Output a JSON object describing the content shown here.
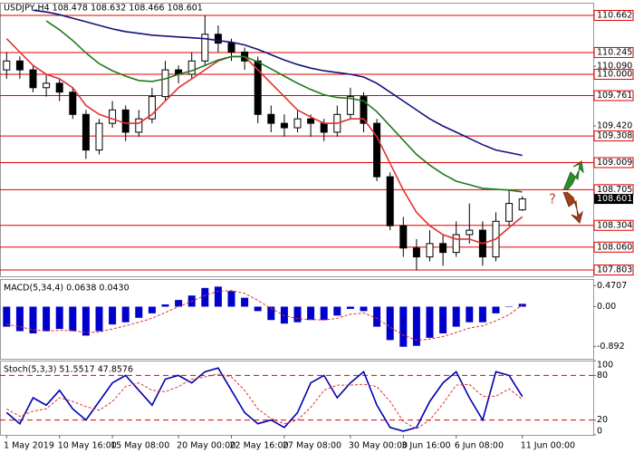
{
  "chart_data": [
    {
      "type": "candlestick",
      "title": "USDJPY,H4  108.478 108.632 108.466 108.601",
      "categories": [
        "1 May 2019",
        null,
        null,
        null,
        "10 May 16:00",
        null,
        null,
        null,
        "15 May 08:00",
        null,
        null,
        null,
        null,
        "20 May 00:00",
        null,
        null,
        null,
        "22 May 16:00",
        null,
        null,
        null,
        "27 May 08:00",
        null,
        null,
        null,
        null,
        "30 May 00:00",
        null,
        null,
        null,
        "3 Jun 16:00",
        null,
        null,
        null,
        "6 Jun 08:00",
        null,
        null,
        null,
        null,
        "11 Jun 00:00"
      ],
      "open": [
        110.05,
        110.15,
        110.05,
        109.85,
        109.9,
        109.8,
        109.55,
        109.15,
        109.45,
        109.6,
        109.35,
        109.5,
        109.75,
        110.05,
        110.0,
        110.15,
        110.45,
        110.35,
        110.25,
        110.15,
        109.55,
        109.45,
        109.4,
        109.5,
        109.45,
        109.35,
        109.55,
        109.75,
        109.45,
        108.85,
        108.3,
        108.05,
        107.95,
        108.1,
        108.0,
        108.2,
        108.25,
        107.95,
        108.35,
        108.478
      ],
      "high": [
        110.25,
        110.2,
        110.1,
        110.0,
        109.95,
        109.85,
        109.6,
        109.5,
        109.7,
        109.65,
        109.6,
        109.85,
        110.15,
        110.1,
        110.25,
        110.66,
        110.55,
        110.4,
        110.3,
        110.2,
        109.65,
        109.55,
        109.6,
        109.55,
        109.5,
        109.65,
        109.85,
        109.8,
        109.5,
        108.9,
        108.4,
        108.15,
        108.25,
        108.2,
        108.35,
        108.55,
        108.35,
        108.45,
        108.7,
        108.632
      ],
      "low": [
        109.95,
        109.95,
        109.8,
        109.75,
        109.7,
        109.5,
        109.05,
        109.1,
        109.4,
        109.25,
        109.3,
        109.45,
        109.7,
        109.9,
        109.95,
        110.1,
        110.25,
        110.15,
        110.05,
        109.45,
        109.35,
        109.3,
        109.35,
        109.3,
        109.25,
        109.3,
        109.5,
        109.35,
        108.8,
        108.25,
        107.95,
        107.8,
        107.9,
        107.85,
        107.95,
        108.1,
        107.85,
        107.9,
        108.3,
        108.466
      ],
      "close": [
        110.15,
        110.05,
        109.85,
        109.9,
        109.8,
        109.55,
        109.15,
        109.45,
        109.6,
        109.35,
        109.5,
        109.75,
        110.05,
        110.0,
        110.15,
        110.45,
        110.35,
        110.25,
        110.15,
        109.55,
        109.45,
        109.4,
        109.5,
        109.45,
        109.35,
        109.55,
        109.75,
        109.45,
        108.85,
        108.3,
        108.05,
        107.95,
        108.1,
        108.0,
        108.2,
        108.25,
        107.95,
        108.35,
        108.55,
        108.601
      ],
      "up_color": "#ffffff",
      "down_color": "#000000",
      "series": [
        {
          "color": "#e03030",
          "values": [
            110.4,
            110.25,
            110.1,
            110.0,
            109.95,
            109.85,
            109.65,
            109.55,
            109.5,
            109.45,
            109.45,
            109.55,
            109.7,
            109.85,
            109.95,
            110.05,
            110.15,
            110.2,
            110.2,
            110.05,
            109.9,
            109.75,
            109.6,
            109.52,
            109.45,
            109.45,
            109.5,
            109.5,
            109.3,
            109.0,
            108.7,
            108.45,
            108.3,
            108.2,
            108.15,
            108.15,
            108.1,
            108.15,
            108.28,
            108.4
          ]
        },
        {
          "color": "#1e7a1e",
          "values": [
            null,
            null,
            null,
            110.6,
            110.5,
            110.38,
            110.24,
            110.12,
            110.04,
            109.98,
            109.93,
            109.92,
            109.95,
            110.0,
            110.04,
            110.1,
            110.16,
            110.2,
            110.2,
            110.14,
            110.06,
            109.98,
            109.9,
            109.83,
            109.77,
            109.74,
            109.73,
            109.7,
            109.58,
            109.42,
            109.26,
            109.1,
            108.98,
            108.88,
            108.8,
            108.76,
            108.72,
            108.71,
            108.7,
            108.68
          ]
        },
        {
          "color": "#12127a",
          "values": [
            null,
            null,
            110.72,
            110.7,
            110.67,
            110.63,
            110.59,
            110.55,
            110.51,
            110.48,
            110.46,
            110.44,
            110.43,
            110.42,
            110.41,
            110.4,
            110.38,
            110.36,
            110.33,
            110.28,
            110.22,
            110.16,
            110.11,
            110.07,
            110.04,
            110.02,
            110.0,
            109.97,
            109.9,
            109.8,
            109.7,
            109.6,
            109.5,
            109.42,
            109.35,
            109.28,
            109.21,
            109.15,
            109.12,
            109.09
          ]
        }
      ],
      "levels": [
        110.662,
        110.245,
        110.0,
        109.761,
        109.308,
        109.009,
        108.705,
        108.304,
        108.06,
        107.803
      ],
      "level_color": "#e00000",
      "last_price": 108.601,
      "annotation": "?",
      "ylim": [
        107.732,
        110.804
      ],
      "yticks": [
        110.662,
        110.245,
        {
          "value": 110.09,
          "label": "110.090"
        },
        {
          "value": 110.0,
          "label": "110.000"
        },
        109.761,
        {
          "value": 109.42,
          "label": "109.420"
        },
        109.308,
        109.009,
        108.705,
        108.304,
        {
          "value": 108.06,
          "label": "108.060"
        },
        107.803
      ]
    },
    {
      "type": "bar",
      "title": "MACD(5,34,4) 0.0638 0.0430",
      "color": "#0000cc",
      "values": [
        -0.45,
        -0.55,
        -0.6,
        -0.55,
        -0.5,
        -0.55,
        -0.65,
        -0.55,
        -0.4,
        -0.35,
        -0.25,
        -0.15,
        0.05,
        0.15,
        0.25,
        0.42,
        0.45,
        0.35,
        0.2,
        -0.1,
        -0.3,
        -0.38,
        -0.35,
        -0.3,
        -0.3,
        -0.2,
        -0.05,
        -0.1,
        -0.45,
        -0.75,
        -0.9,
        -0.88,
        -0.7,
        -0.6,
        -0.45,
        -0.35,
        -0.35,
        -0.15,
        0.0,
        0.0638
      ],
      "series": [
        {
          "color": "#e03030",
          "dashed": true,
          "values": [
            -0.4,
            -0.45,
            -0.52,
            -0.55,
            -0.53,
            -0.54,
            -0.58,
            -0.57,
            -0.5,
            -0.43,
            -0.35,
            -0.26,
            -0.13,
            0.0,
            0.12,
            0.25,
            0.35,
            0.36,
            0.3,
            0.14,
            -0.04,
            -0.2,
            -0.27,
            -0.29,
            -0.3,
            -0.26,
            -0.17,
            -0.14,
            -0.26,
            -0.46,
            -0.64,
            -0.75,
            -0.73,
            -0.67,
            -0.58,
            -0.48,
            -0.43,
            -0.32,
            -0.18,
            0.043
          ]
        }
      ],
      "ylim": [
        -1.17,
        0.62
      ],
      "yticks": [
        0.4707,
        {
          "value": 0,
          "label": "0.00"
        },
        -0.892
      ]
    },
    {
      "type": "line",
      "title": "Stoch(5,3,3) 51.5517 47.8576",
      "series": [
        {
          "color": "#0000b0",
          "values": [
            30,
            15,
            50,
            40,
            60,
            35,
            20,
            45,
            70,
            80,
            60,
            40,
            75,
            80,
            70,
            85,
            90,
            60,
            30,
            15,
            20,
            10,
            30,
            70,
            80,
            50,
            70,
            85,
            40,
            10,
            5,
            10,
            45,
            70,
            85,
            50,
            20,
            85,
            80,
            51.5517
          ]
        },
        {
          "color": "#e03030",
          "dashed": true,
          "values": [
            35,
            25,
            32,
            35,
            50,
            45,
            38,
            33,
            45,
            65,
            70,
            60,
            58,
            65,
            75,
            78,
            82,
            78,
            60,
            35,
            22,
            15,
            20,
            37,
            60,
            67,
            67,
            68,
            65,
            45,
            18,
            8,
            20,
            42,
            67,
            68,
            52,
            52,
            62,
            47.8576
          ]
        }
      ],
      "levels": [
        80,
        20
      ],
      "level_color": "#e00000",
      "ylim": [
        0,
        100
      ],
      "yticks": [
        100,
        80,
        20,
        0
      ]
    }
  ]
}
